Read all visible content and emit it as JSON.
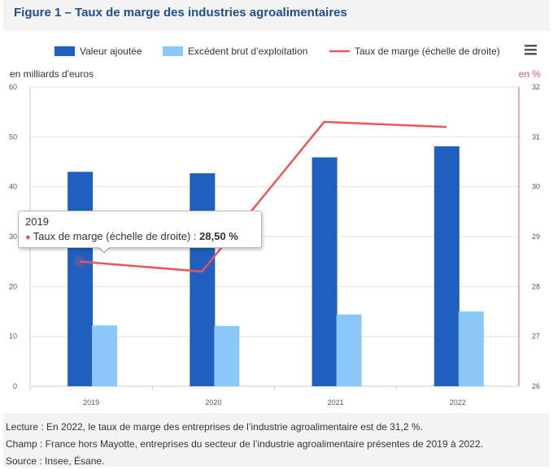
{
  "title": "Figure 1 – Taux de marge des industries agroalimentaires",
  "menu_icon": "hamburger-menu-icon",
  "colors": {
    "valeur_ajoutee": "#1f5fbf",
    "excedent": "#8cc8f7",
    "taux": "#e8565a",
    "title": "#1f4e8c"
  },
  "chart_data": {
    "type": "bar",
    "categories": [
      "2019",
      "2020",
      "2021",
      "2022"
    ],
    "series": [
      {
        "name": "Valeur ajoutée",
        "type": "bar",
        "axis": "left",
        "values": [
          43.0,
          42.7,
          45.9,
          48.1
        ]
      },
      {
        "name": "Excédent brut d'exploitation",
        "type": "bar",
        "axis": "left",
        "values": [
          12.2,
          12.1,
          14.4,
          15.0
        ]
      },
      {
        "name": "Taux de marge (échelle de droite)",
        "type": "line",
        "axis": "right",
        "values": [
          28.5,
          28.3,
          31.3,
          31.2
        ]
      }
    ],
    "ylabel": "en milliards d'euros",
    "ylabel_right": "en %",
    "ylim": [
      0,
      60
    ],
    "ylim_right": [
      26,
      32
    ],
    "yticks": [
      "0",
      "10",
      "20",
      "30",
      "40",
      "50",
      "60"
    ],
    "yticks_right": [
      "26",
      "27",
      "28",
      "29",
      "30",
      "31",
      "32"
    ],
    "grid": true,
    "legend_position": "top"
  },
  "tooltip": {
    "title": "2019",
    "label": "Taux de marge (échelle de droite) : ",
    "value": "28,50 %"
  },
  "notes": {
    "lecture": "Lecture : En 2022, le taux de marge des entreprises de l’industrie agroalimentaire est de 31,2 %.",
    "champ": "Champ : France hors Mayotte, entreprises du secteur de l’industrie agroalimentaire présentes de 2019 à 2022.",
    "source": "Source : Insee, Ésane."
  }
}
